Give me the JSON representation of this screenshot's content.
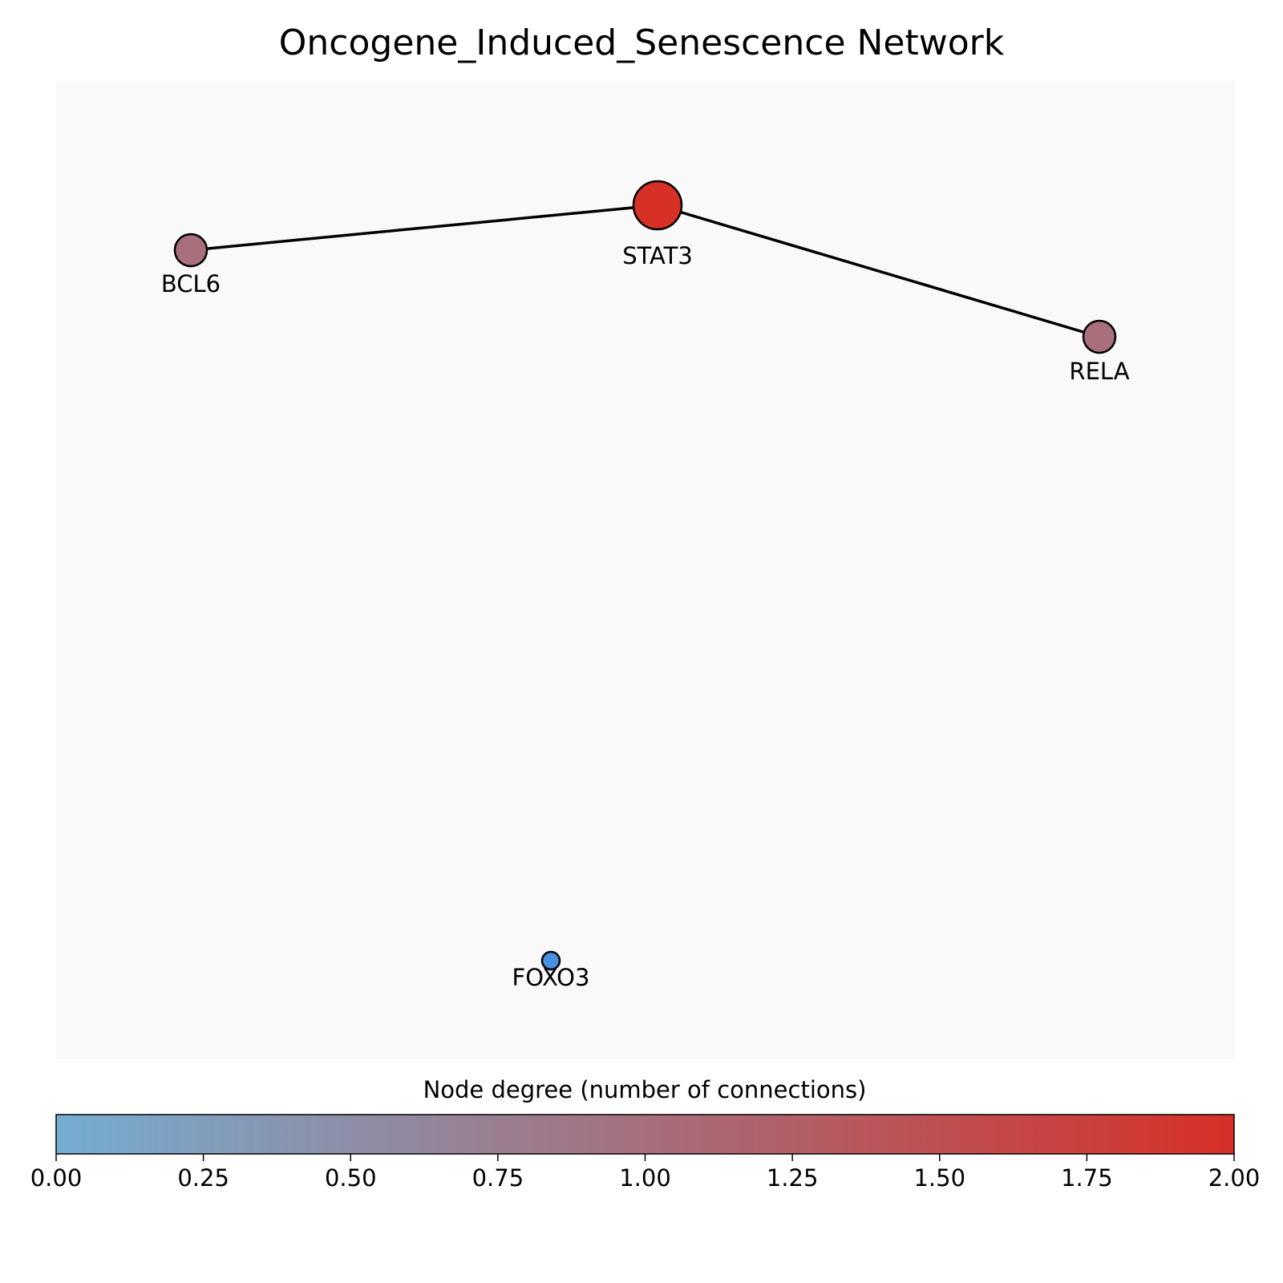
{
  "title": "Oncogene_Induced_Senescence Network",
  "network": {
    "nodes": [
      {
        "id": "STAT3",
        "label": "STAT3",
        "degree": 2,
        "color": "#d73027"
      },
      {
        "id": "BCL6",
        "label": "BCL6",
        "degree": 1,
        "color": "#a8707c"
      },
      {
        "id": "RELA",
        "label": "RELA",
        "degree": 1,
        "color": "#a8707c"
      },
      {
        "id": "FOXO3",
        "label": "FOXO3",
        "degree": 0,
        "color": "#4a90e2"
      }
    ],
    "edges": [
      {
        "source": "BCL6",
        "target": "STAT3"
      },
      {
        "source": "STAT3",
        "target": "RELA"
      }
    ]
  },
  "colorbar": {
    "label": "Node degree (number of connections)",
    "min": 0,
    "max": 2,
    "start_color": "#74add1",
    "end_color": "#d73027",
    "ticks": [
      "0.00",
      "0.25",
      "0.50",
      "0.75",
      "1.00",
      "1.25",
      "1.50",
      "1.75",
      "2.00"
    ]
  },
  "colors": {
    "plot_background": "#f9f9f9",
    "edge": "#000000",
    "node_outline": "#000000"
  }
}
